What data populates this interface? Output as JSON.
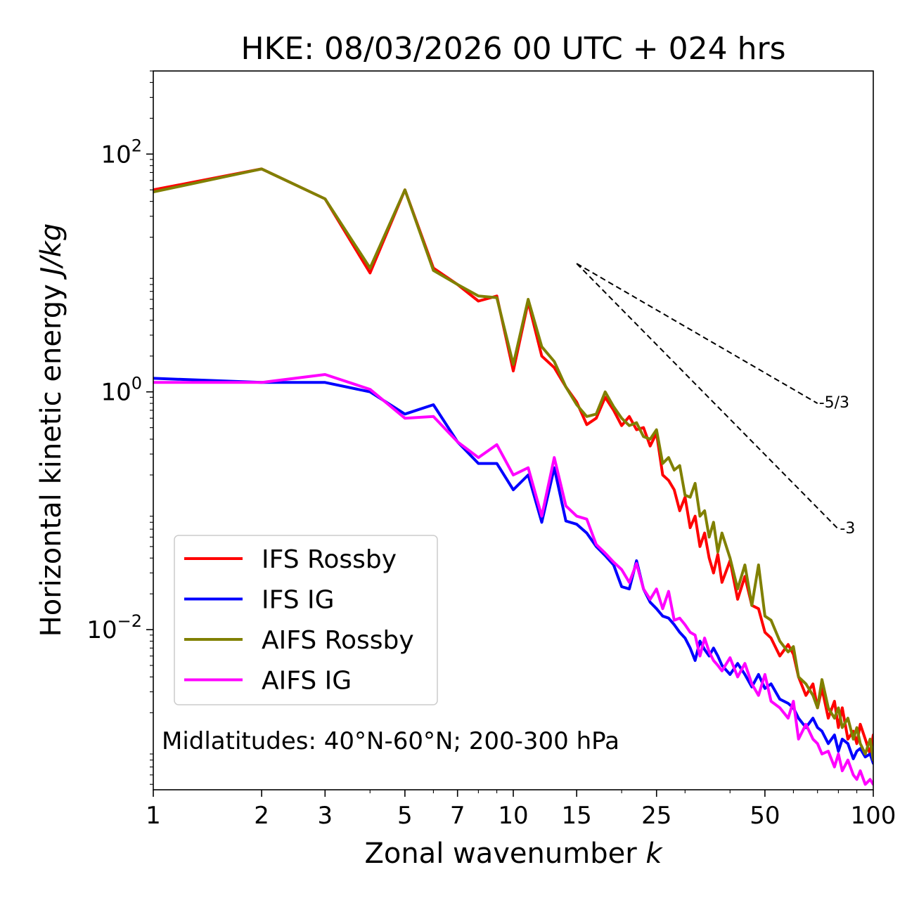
{
  "chart_data": {
    "type": "line",
    "title": "HKE: 08/03/2026 00 UTC + 024 hrs",
    "xlabel_text": "Zonal wavenumber ",
    "xlabel_var": "k",
    "ylabel_text": "Horizontal kinetic energy ",
    "ylabel_unit": "J/kg",
    "xscale": "log",
    "yscale": "log",
    "xlim": [
      1,
      100
    ],
    "ylim": [
      0.00045,
      500
    ],
    "xticks": [
      1,
      2,
      3,
      5,
      7,
      10,
      15,
      25,
      50,
      100
    ],
    "xtick_labels": [
      "1",
      "2",
      "3",
      "5",
      "7",
      "10",
      "15",
      "25",
      "50",
      "100"
    ],
    "yticks": [
      {
        "value": 100,
        "base": "10",
        "exp": "2"
      },
      {
        "value": 1,
        "base": "10",
        "exp": "0"
      },
      {
        "value": 0.01,
        "base": "10",
        "exp": "−2"
      }
    ],
    "annotation": "Midlatitudes: 40°N-60°N; 200-300 hPa",
    "legend_position": "lower-left",
    "reference_slopes": [
      {
        "label": "-5/3",
        "x0": 15,
        "y0": 12,
        "x1": 70,
        "y1": 0.8
      },
      {
        "label": "-3",
        "x0": 15,
        "y0": 12,
        "x1": 80,
        "y1": 0.07
      }
    ],
    "series": [
      {
        "name": "IFS Rossby",
        "color": "#ff0000",
        "x": [
          1,
          2,
          3,
          4,
          5,
          6,
          7,
          8,
          9,
          10,
          11,
          12,
          13,
          14,
          15,
          16,
          17,
          18,
          19,
          20,
          21,
          22,
          23,
          24,
          25,
          26,
          27,
          28,
          29,
          30,
          31,
          32,
          33,
          34,
          35,
          36,
          37,
          38,
          40,
          42,
          44,
          46,
          48,
          50,
          52,
          55,
          58,
          60,
          62,
          65,
          68,
          70,
          72,
          75,
          78,
          80,
          82,
          85,
          88,
          90,
          92,
          95,
          98,
          100
        ],
        "y": [
          50,
          75,
          42,
          10,
          50,
          11,
          8,
          5.8,
          6.4,
          1.5,
          5.7,
          2.0,
          1.6,
          1.1,
          0.82,
          0.53,
          0.6,
          0.9,
          0.7,
          0.52,
          0.62,
          0.48,
          0.5,
          0.35,
          0.45,
          0.2,
          0.18,
          0.15,
          0.1,
          0.13,
          0.072,
          0.09,
          0.05,
          0.065,
          0.04,
          0.03,
          0.043,
          0.025,
          0.038,
          0.018,
          0.028,
          0.016,
          0.015,
          0.0095,
          0.0085,
          0.006,
          0.0075,
          0.0062,
          0.004,
          0.0028,
          0.0035,
          0.0022,
          0.0032,
          0.0018,
          0.0025,
          0.0015,
          0.0022,
          0.0012,
          0.0014,
          0.0011,
          0.0016,
          0.0012,
          0.0009,
          0.0013
        ]
      },
      {
        "name": "IFS IG",
        "color": "#0000ff",
        "x": [
          1,
          2,
          3,
          4,
          5,
          6,
          7,
          8,
          9,
          10,
          11,
          12,
          13,
          14,
          15,
          16,
          17,
          18,
          19,
          20,
          21,
          22,
          23,
          24,
          25,
          26,
          27,
          28,
          29,
          30,
          31,
          32,
          33,
          34,
          35,
          36,
          37,
          38,
          40,
          42,
          44,
          46,
          48,
          50,
          52,
          55,
          58,
          60,
          62,
          65,
          68,
          70,
          72,
          75,
          78,
          80,
          82,
          85,
          88,
          90,
          92,
          95,
          98,
          100
        ],
        "y": [
          1.3,
          1.2,
          1.2,
          1.0,
          0.65,
          0.78,
          0.38,
          0.25,
          0.25,
          0.15,
          0.2,
          0.08,
          0.23,
          0.082,
          0.077,
          0.065,
          0.05,
          0.042,
          0.035,
          0.023,
          0.022,
          0.038,
          0.022,
          0.017,
          0.015,
          0.013,
          0.0125,
          0.011,
          0.0095,
          0.0085,
          0.007,
          0.0055,
          0.008,
          0.0068,
          0.006,
          0.007,
          0.006,
          0.005,
          0.0042,
          0.0052,
          0.0042,
          0.0033,
          0.0042,
          0.0032,
          0.0035,
          0.0026,
          0.0024,
          0.0022,
          0.0018,
          0.0015,
          0.0018,
          0.0015,
          0.0014,
          0.0011,
          0.0013,
          0.00095,
          0.0012,
          0.0011,
          0.00082,
          0.00095,
          0.001,
          0.00085,
          0.0009,
          0.00075
        ]
      },
      {
        "name": "AIFS Rossby",
        "color": "#808000",
        "x": [
          1,
          2,
          3,
          4,
          5,
          6,
          7,
          8,
          9,
          10,
          11,
          12,
          13,
          14,
          15,
          16,
          17,
          18,
          19,
          20,
          21,
          22,
          23,
          24,
          25,
          26,
          27,
          28,
          29,
          30,
          31,
          32,
          33,
          34,
          35,
          36,
          37,
          38,
          40,
          42,
          44,
          46,
          48,
          50,
          52,
          55,
          58,
          60,
          62,
          65,
          68,
          70,
          72,
          75,
          78,
          80,
          82,
          85,
          88,
          90,
          92,
          95,
          98,
          100
        ],
        "y": [
          48,
          75,
          42,
          11,
          50,
          10.5,
          8,
          6.4,
          6.2,
          1.7,
          6,
          2.4,
          1.8,
          1.1,
          0.78,
          0.62,
          0.65,
          1.0,
          0.75,
          0.6,
          0.52,
          0.55,
          0.42,
          0.4,
          0.48,
          0.25,
          0.28,
          0.22,
          0.24,
          0.135,
          0.13,
          0.17,
          0.09,
          0.1,
          0.06,
          0.08,
          0.045,
          0.065,
          0.04,
          0.022,
          0.035,
          0.016,
          0.035,
          0.013,
          0.012,
          0.008,
          0.0065,
          0.0072,
          0.004,
          0.0035,
          0.0028,
          0.0022,
          0.0038,
          0.0022,
          0.0018,
          0.0022,
          0.0015,
          0.0018,
          0.0012,
          0.0015,
          0.0011,
          0.0009,
          0.0012,
          0.0008
        ]
      },
      {
        "name": "AIFS IG",
        "color": "#ff00ff",
        "x": [
          1,
          2,
          3,
          4,
          5,
          6,
          7,
          8,
          9,
          10,
          11,
          12,
          13,
          14,
          15,
          16,
          17,
          18,
          19,
          20,
          21,
          22,
          23,
          24,
          25,
          26,
          27,
          28,
          29,
          30,
          31,
          32,
          33,
          34,
          35,
          36,
          37,
          38,
          40,
          42,
          44,
          46,
          48,
          50,
          52,
          55,
          58,
          60,
          62,
          65,
          68,
          70,
          72,
          75,
          78,
          80,
          82,
          85,
          88,
          90,
          92,
          95,
          98,
          100
        ],
        "y": [
          1.2,
          1.2,
          1.4,
          1.05,
          0.6,
          0.62,
          0.38,
          0.28,
          0.36,
          0.2,
          0.23,
          0.09,
          0.28,
          0.11,
          0.09,
          0.085,
          0.052,
          0.044,
          0.037,
          0.032,
          0.025,
          0.036,
          0.022,
          0.018,
          0.022,
          0.015,
          0.021,
          0.012,
          0.0125,
          0.011,
          0.0095,
          0.009,
          0.006,
          0.0085,
          0.0065,
          0.0055,
          0.005,
          0.0045,
          0.0058,
          0.004,
          0.0052,
          0.0035,
          0.0028,
          0.0042,
          0.0025,
          0.0022,
          0.0018,
          0.0025,
          0.0012,
          0.0016,
          0.0012,
          0.0011,
          0.0009,
          0.00095,
          0.0007,
          0.0009,
          0.00065,
          0.0008,
          0.0006,
          0.00055,
          0.00065,
          0.0005,
          0.00055,
          0.0005
        ]
      }
    ]
  }
}
